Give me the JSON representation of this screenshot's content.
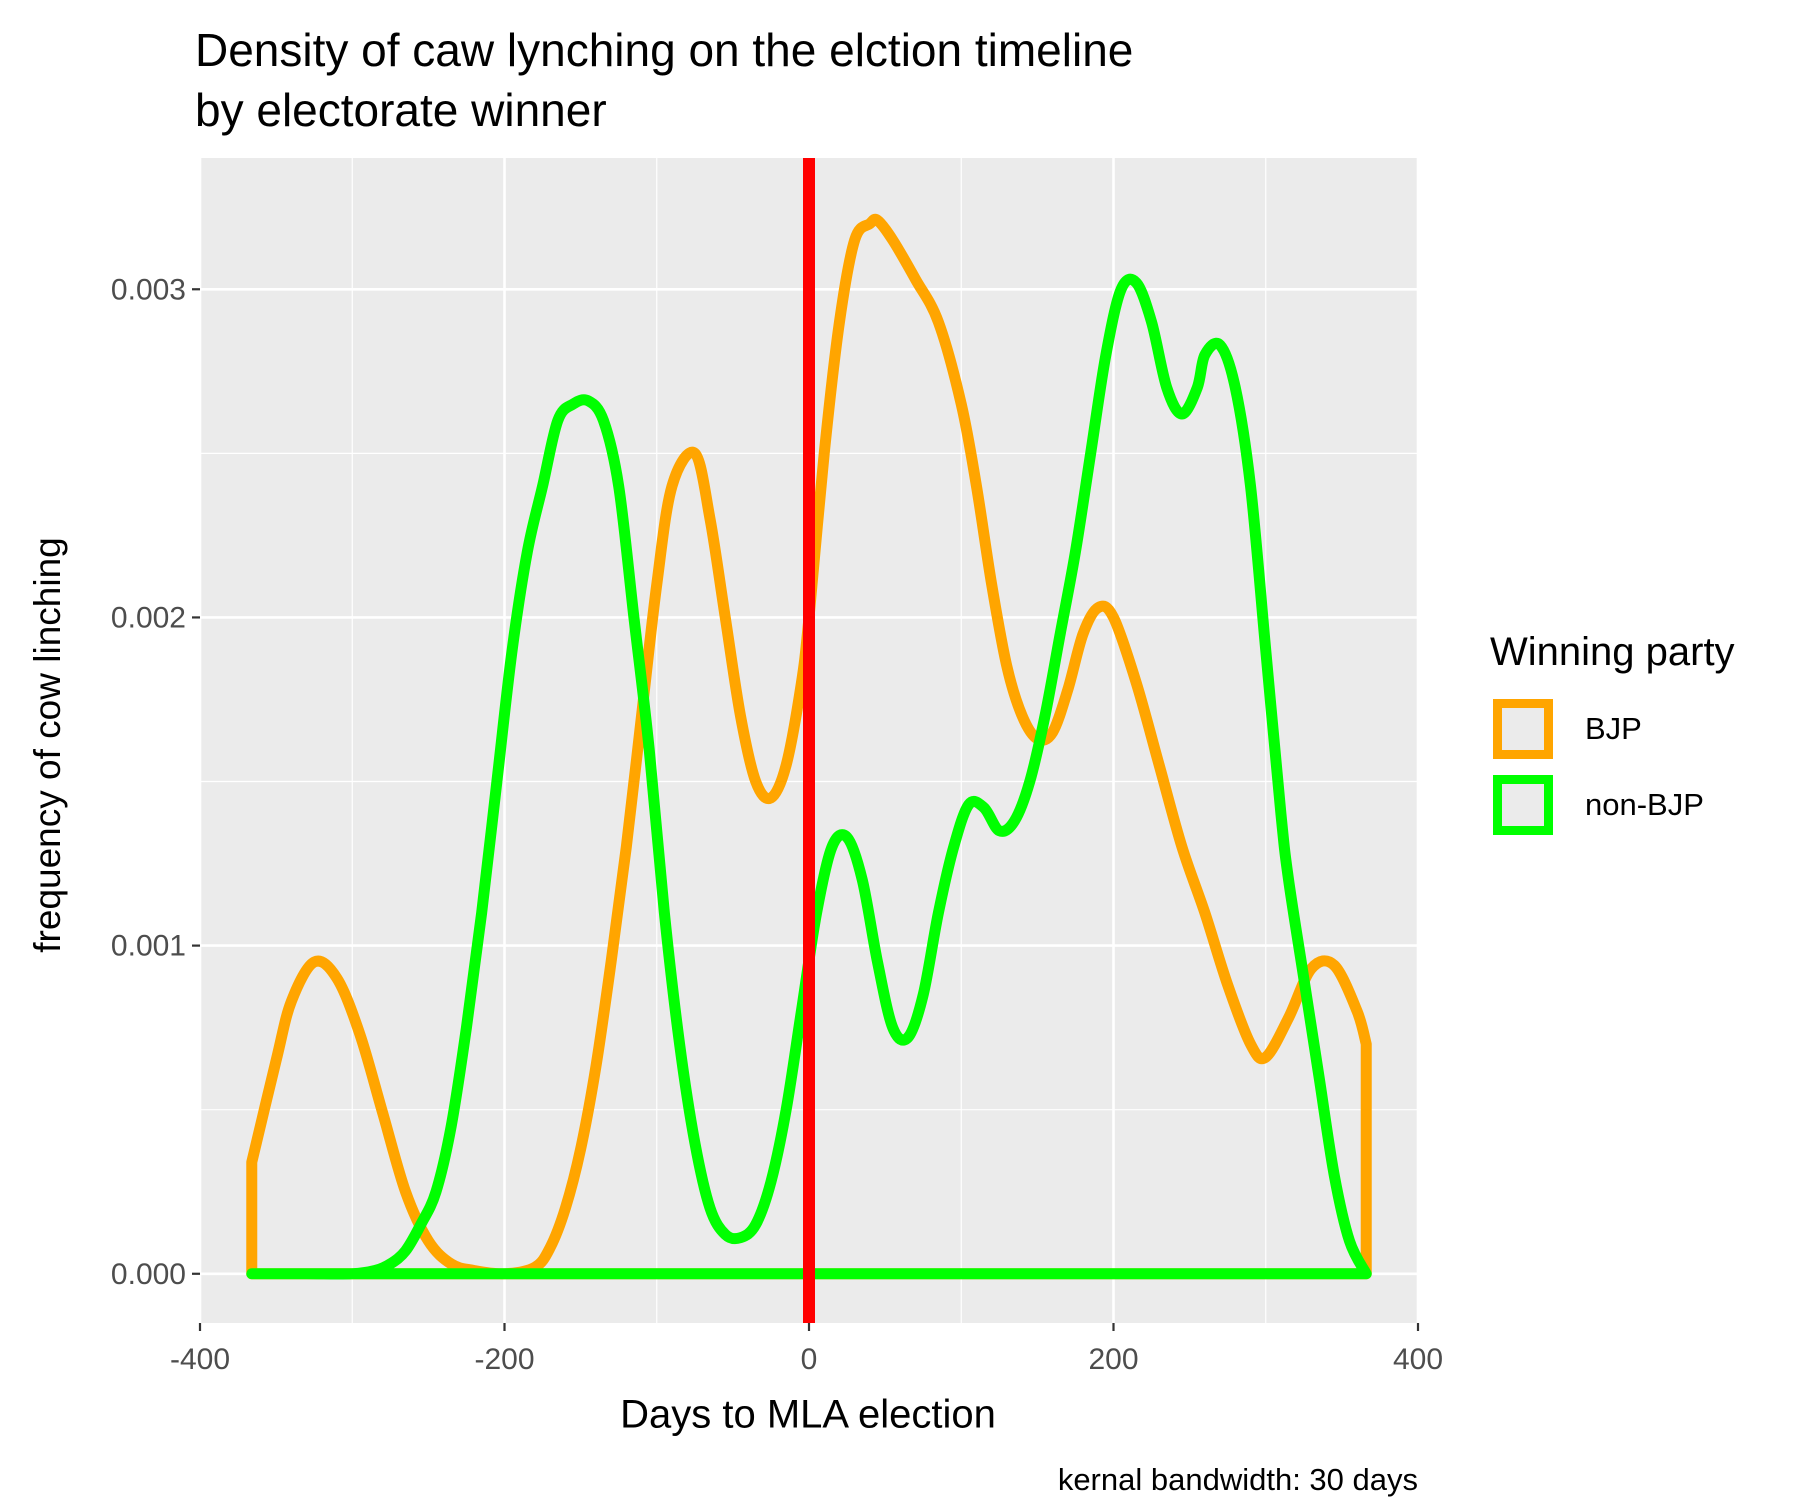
{
  "chart_data": {
    "type": "line",
    "title": [
      "Density of caw lynching on the elction timeline",
      "by electorate winner"
    ],
    "xlabel": "Days to MLA election",
    "ylabel": "frequency of cow linching",
    "caption": "kernal bandwidth: 30 days",
    "xlim": [
      -400,
      400
    ],
    "ylim": [
      -0.00015,
      0.0034
    ],
    "x_ticks": [
      -400,
      -200,
      0,
      200,
      400
    ],
    "x_tick_labels": [
      "-400",
      "-200",
      "0",
      "200",
      "400"
    ],
    "y_ticks": [
      0,
      0.001,
      0.002,
      0.003
    ],
    "y_tick_labels": [
      "0.000",
      "0.001",
      "0.002",
      "0.003"
    ],
    "grid": true,
    "legend": {
      "title": "Winning party",
      "position": "right",
      "items": [
        {
          "label": "BJP",
          "color": "#FFA500"
        },
        {
          "label": "non-BJP",
          "color": "#00FF00"
        }
      ]
    },
    "vline": {
      "x": 0,
      "color": "#FF0000"
    },
    "panel_background": "#EBEBEB",
    "series": [
      {
        "name": "BJP",
        "color": "#FFA500",
        "x": [
          -366,
          -350,
          -340,
          -325,
          -310,
          -295,
          -280,
          -265,
          -250,
          -235,
          -220,
          -200,
          -180,
          -170,
          -160,
          -150,
          -140,
          -130,
          -120,
          -110,
          -100,
          -90,
          -75,
          -65,
          -55,
          -45,
          -35,
          -25,
          -15,
          -5,
          0,
          10,
          20,
          30,
          40,
          45,
          55,
          70,
          85,
          100,
          110,
          120,
          130,
          140,
          150,
          160,
          170,
          180,
          190,
          200,
          215,
          230,
          245,
          260,
          275,
          290,
          300,
          315,
          330,
          345,
          360,
          366
        ],
        "y": [
          0.00034,
          0.00065,
          0.00083,
          0.00095,
          0.0009,
          0.00073,
          0.00049,
          0.00025,
          0.0001,
          3e-05,
          1e-05,
          0.0,
          2e-05,
          8e-05,
          0.0002,
          0.00038,
          0.00063,
          0.00095,
          0.0013,
          0.0017,
          0.0021,
          0.0024,
          0.0025,
          0.0023,
          0.002,
          0.0017,
          0.0015,
          0.00145,
          0.00155,
          0.0018,
          0.002,
          0.0025,
          0.0029,
          0.00315,
          0.0032,
          0.00321,
          0.00315,
          0.00303,
          0.0029,
          0.00265,
          0.0024,
          0.0021,
          0.00185,
          0.0017,
          0.00163,
          0.00165,
          0.00178,
          0.00195,
          0.00203,
          0.002,
          0.0018,
          0.00155,
          0.0013,
          0.0011,
          0.00088,
          0.0007,
          0.00066,
          0.00078,
          0.00093,
          0.00094,
          0.0008,
          0.0007
        ]
      },
      {
        "name": "non-BJP",
        "color": "#00FF00",
        "x": [
          -366,
          -330,
          -300,
          -285,
          -275,
          -265,
          -255,
          -245,
          -235,
          -225,
          -215,
          -205,
          -195,
          -185,
          -175,
          -165,
          -155,
          -145,
          -135,
          -125,
          -115,
          -105,
          -95,
          -85,
          -75,
          -65,
          -55,
          -45,
          -35,
          -25,
          -15,
          -5,
          5,
          15,
          25,
          35,
          45,
          55,
          65,
          75,
          85,
          95,
          105,
          115,
          125,
          135,
          145,
          155,
          165,
          175,
          185,
          195,
          205,
          215,
          225,
          235,
          245,
          255,
          260,
          270,
          280,
          290,
          300,
          310,
          315,
          325,
          335,
          345,
          355,
          366
        ],
        "y": [
          0.0,
          0.0,
          0.0,
          1e-05,
          3e-05,
          7e-05,
          0.00015,
          0.00025,
          0.00045,
          0.00075,
          0.0011,
          0.0015,
          0.0019,
          0.0022,
          0.0024,
          0.0026,
          0.00265,
          0.00266,
          0.0026,
          0.0024,
          0.002,
          0.0016,
          0.0011,
          0.0007,
          0.0004,
          0.0002,
          0.00012,
          0.00011,
          0.00015,
          0.00028,
          0.0005,
          0.0008,
          0.0011,
          0.0013,
          0.00133,
          0.0012,
          0.00095,
          0.00075,
          0.00072,
          0.00085,
          0.0011,
          0.0013,
          0.00143,
          0.00142,
          0.00135,
          0.00138,
          0.0015,
          0.0017,
          0.00195,
          0.0022,
          0.0025,
          0.0028,
          0.003,
          0.00302,
          0.0029,
          0.0027,
          0.00262,
          0.0027,
          0.0028,
          0.00283,
          0.0027,
          0.0024,
          0.0019,
          0.0014,
          0.0012,
          0.0009,
          0.0006,
          0.0003,
          0.0001,
          0.0
        ]
      }
    ]
  }
}
